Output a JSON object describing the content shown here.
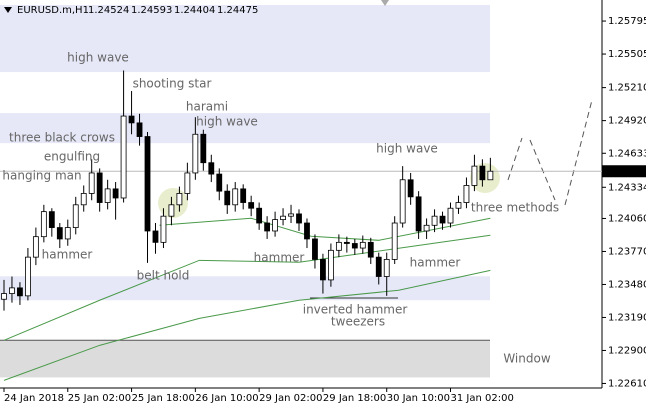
{
  "chart_data": {
    "type": "candlestick",
    "symbol": "EURUSD.m,H1",
    "ohlc": [
      1.24524,
      1.24593,
      1.24404,
      1.24475
    ],
    "xlim": [
      -1,
      150
    ],
    "ylim": [
      1.2257,
      1.2598
    ],
    "xticks": [
      {
        "value": 0,
        "label": "24 Jan 2018"
      },
      {
        "value": 16,
        "label": "25 Jan 02:00"
      },
      {
        "value": 32,
        "label": "25 Jan 18:00"
      },
      {
        "value": 48,
        "label": "26 Jan 10:00"
      },
      {
        "value": 64,
        "label": "29 Jan 02:00"
      },
      {
        "value": 80,
        "label": "29 Jan 18:00"
      },
      {
        "value": 96,
        "label": "30 Jan 10:00"
      },
      {
        "value": 112,
        "label": "31 Jan 02:00"
      }
    ],
    "yticks": [
      1.25795,
      1.25505,
      {
        "value": 1.2521,
        "label": "1.25210"
      },
      {
        "value": 1.2492,
        "label": "1.24920"
      },
      1.24633,
      1.24334,
      {
        "value": 1.2406,
        "label": "1.24060"
      },
      {
        "value": 1.2377,
        "label": "1.23770"
      },
      {
        "value": 1.2348,
        "label": "1.23480"
      },
      {
        "value": 1.2319,
        "label": "1.23190"
      },
      {
        "value": 1.229,
        "label": "1.22900"
      },
      {
        "value": 1.2261,
        "label": "1.22610"
      }
    ],
    "x": [
      0,
      2,
      4,
      6,
      8,
      10,
      12,
      14,
      16,
      18,
      20,
      22,
      24,
      26,
      28,
      30,
      32,
      34,
      36,
      38,
      40,
      42,
      44,
      46,
      48,
      50,
      52,
      54,
      56,
      58,
      60,
      62,
      64,
      66,
      68,
      70,
      72,
      74,
      76,
      78,
      80,
      82,
      84,
      86,
      88,
      90,
      92,
      94,
      96,
      98,
      100,
      102,
      104,
      106,
      108,
      110,
      112,
      114,
      116,
      118,
      120,
      122
    ],
    "open": [
      1.2335,
      1.234,
      1.2345,
      1.2338,
      1.2372,
      1.239,
      1.2412,
      1.2398,
      1.2388,
      1.2398,
      1.2418,
      1.2428,
      1.2446,
      1.242,
      1.2432,
      1.2424,
      1.2496,
      1.249,
      1.2478,
      1.2395,
      1.2385,
      1.2408,
      1.2418,
      1.2428,
      1.2446,
      1.248,
      1.2455,
      1.2445,
      1.243,
      1.2418,
      1.2432,
      1.242,
      1.2415,
      1.2402,
      1.2395,
      1.2405,
      1.2408,
      1.241,
      1.2402,
      1.2388,
      1.237,
      1.2352,
      1.2378,
      1.2385,
      1.2384,
      1.238,
      1.2385,
      1.2372,
      1.2355,
      1.237,
      1.2402,
      1.244,
      1.2425,
      1.2395,
      1.24,
      1.2408,
      1.2402,
      1.2415,
      1.242,
      1.2435,
      1.2452,
      1.244
    ],
    "high": [
      1.2352,
      1.2355,
      1.235,
      1.238,
      1.2398,
      1.2418,
      1.2415,
      1.2402,
      1.2405,
      1.2425,
      1.2435,
      1.2458,
      1.245,
      1.244,
      1.2438,
      1.2536,
      1.2518,
      1.2498,
      1.2482,
      1.2402,
      1.2415,
      1.2425,
      1.2434,
      1.2455,
      1.2495,
      1.2484,
      1.2462,
      1.245,
      1.2436,
      1.2438,
      1.2436,
      1.2426,
      1.242,
      1.2408,
      1.2412,
      1.2415,
      1.2418,
      1.2414,
      1.2406,
      1.2392,
      1.2375,
      1.2384,
      1.2392,
      1.239,
      1.2388,
      1.2391,
      1.2389,
      1.2376,
      1.2376,
      1.2408,
      1.2452,
      1.2446,
      1.243,
      1.2406,
      1.2414,
      1.2412,
      1.242,
      1.2426,
      1.2442,
      1.2462,
      1.2458,
      1.24593
    ],
    "low": [
      1.2325,
      1.2332,
      1.233,
      1.2334,
      1.2365,
      1.2385,
      1.239,
      1.238,
      1.2382,
      1.2392,
      1.2412,
      1.2422,
      1.2412,
      1.2414,
      1.2405,
      1.242,
      1.248,
      1.247,
      1.2367,
      1.2375,
      1.238,
      1.24,
      1.2412,
      1.2422,
      1.244,
      1.2448,
      1.2438,
      1.2422,
      1.241,
      1.2412,
      1.2414,
      1.2408,
      1.2396,
      1.2388,
      1.239,
      1.24,
      1.2402,
      1.2395,
      1.238,
      1.2362,
      1.234,
      1.2346,
      1.2372,
      1.2376,
      1.2374,
      1.2375,
      1.2366,
      1.2348,
      1.2338,
      1.2366,
      1.2398,
      1.2418,
      1.2388,
      1.2388,
      1.2394,
      1.2396,
      1.2398,
      1.241,
      1.2415,
      1.243,
      1.2434,
      1.24404
    ],
    "close": [
      1.234,
      1.2345,
      1.2338,
      1.2372,
      1.239,
      1.2412,
      1.2398,
      1.2388,
      1.2398,
      1.2418,
      1.2428,
      1.2446,
      1.242,
      1.2432,
      1.2424,
      1.2496,
      1.249,
      1.2478,
      1.2395,
      1.2385,
      1.2408,
      1.2418,
      1.2428,
      1.2446,
      1.248,
      1.2455,
      1.2445,
      1.243,
      1.2418,
      1.2432,
      1.242,
      1.2415,
      1.2402,
      1.2395,
      1.2405,
      1.2408,
      1.241,
      1.2402,
      1.2388,
      1.237,
      1.2352,
      1.2378,
      1.2385,
      1.2384,
      1.238,
      1.2385,
      1.2372,
      1.2355,
      1.237,
      1.2402,
      1.244,
      1.2425,
      1.2395,
      1.24,
      1.2408,
      1.2402,
      1.2415,
      1.242,
      1.2435,
      1.2452,
      1.244,
      1.24475
    ],
    "indicators": [
      {
        "color": "#4a9a4a",
        "x": [
          0,
          24,
          49,
          74,
          99,
          122
        ],
        "values": [
          1.22637,
          1.22945,
          1.23182,
          1.23341,
          1.23429,
          1.23604
        ]
      },
      {
        "color": "#4a9a4a",
        "x": [
          0,
          24,
          49,
          74,
          99,
          122
        ],
        "values": [
          1.22989,
          1.23341,
          1.23692,
          1.23675,
          1.23798,
          1.23912
        ]
      },
      {
        "color": "#4a9a4a",
        "x": [
          39,
          62,
          77,
          94,
          122
        ],
        "values": [
          1.24,
          1.24062,
          1.23904,
          1.23868,
          1.24062
        ]
      }
    ],
    "zones": [
      {
        "from": 1.25347,
        "to": 1.25936,
        "color": "#e6e8f8"
      },
      {
        "from": 1.24722,
        "to": 1.24986,
        "color": "#e6e8f8"
      },
      {
        "from": 1.23341,
        "to": 1.23552,
        "color": "#e6e8f8"
      },
      {
        "from": 1.22663,
        "to": 1.2299,
        "color": "#dcdcdc"
      }
    ],
    "annotations": [
      "high wave",
      "shooting star",
      "three black crows",
      "engulfing",
      "hanging man",
      "harami",
      "high wave",
      "high wave",
      "hammer",
      "belt hold",
      "hammer",
      "hammer",
      "three methods",
      "inverted hammer",
      "tweezers",
      "Window"
    ]
  }
}
